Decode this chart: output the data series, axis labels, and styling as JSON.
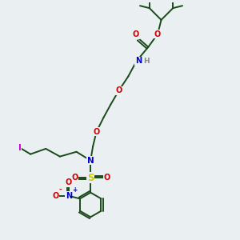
{
  "background_color": "#eaeff2",
  "atom_colors": {
    "C": "#1a3a1a",
    "N": "#0000cc",
    "O": "#cc0000",
    "S": "#cccc00",
    "I": "#cc00cc",
    "H": "#888888",
    "NH": "#0000cc"
  },
  "bond_color": "#1a4a1a",
  "figsize": [
    3.0,
    3.0
  ],
  "dpi": 100
}
